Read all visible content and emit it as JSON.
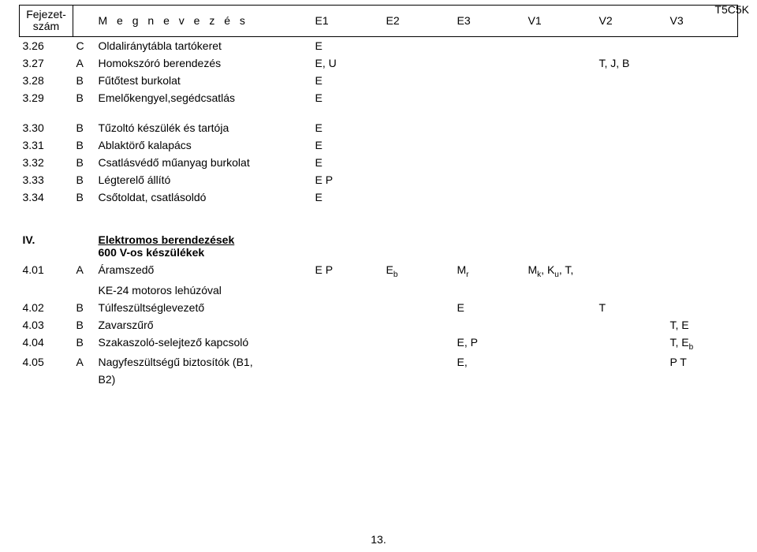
{
  "doc": {
    "code": "T5C5K",
    "page_number": "13."
  },
  "header": {
    "fejezet_line1": "Fejezet-",
    "fejezet_line2": "szám",
    "megnevezes": "M e g n e v e z é s",
    "cols": [
      "E1",
      "E2",
      "E3",
      "V1",
      "V2",
      "V3"
    ]
  },
  "rows": [
    {
      "num": "3.26",
      "cat": "C",
      "name": "Oldaliránytábla tartókeret",
      "c1": "E",
      "c2": "",
      "c3": "",
      "c4": "",
      "c5": "",
      "c6": ""
    },
    {
      "num": "3.27",
      "cat": "A",
      "name": "Homokszóró berendezés",
      "c1": "E, U",
      "c2": "",
      "c3": "",
      "c4": "",
      "c5": "T, J, B",
      "c6": ""
    },
    {
      "num": "3.28",
      "cat": "B",
      "name": "Fűtőtest burkolat",
      "c1": "E",
      "c2": "",
      "c3": "",
      "c4": "",
      "c5": "",
      "c6": ""
    },
    {
      "num": "3.29",
      "cat": "B",
      "name": "Emelőkengyel,segédcsatlás",
      "c1": "E",
      "c2": "",
      "c3": "",
      "c4": "",
      "c5": "",
      "c6": ""
    }
  ],
  "rows2": [
    {
      "num": "3.30",
      "cat": "B",
      "name": "Tűzoltó készülék és tartója",
      "c1": "E",
      "c2": "",
      "c3": "",
      "c4": "",
      "c5": "",
      "c6": ""
    },
    {
      "num": "3.31",
      "cat": "B",
      "name": "Ablaktörő kalapács",
      "c1": "E",
      "c2": "",
      "c3": "",
      "c4": "",
      "c5": "",
      "c6": ""
    },
    {
      "num": "3.32",
      "cat": "B",
      "name": "Csatlásvédő műanyag burkolat",
      "c1": "E",
      "c2": "",
      "c3": "",
      "c4": "",
      "c5": "",
      "c6": ""
    },
    {
      "num": "3.33",
      "cat": "B",
      "name": "Légterelő állító",
      "c1": "E P",
      "c2": "",
      "c3": "",
      "c4": "",
      "c5": "",
      "c6": ""
    },
    {
      "num": "3.34",
      "cat": "B",
      "name": "Csőtoldat, csatlásoldó",
      "c1": "E",
      "c2": "",
      "c3": "",
      "c4": "",
      "c5": "",
      "c6": ""
    }
  ],
  "section4": {
    "num": "IV.",
    "title": "Elektromos berendezések",
    "subtitle": "600 V-os készülékek"
  },
  "rows4": [
    {
      "num": "4.01",
      "cat": "A",
      "name_html": "Áramszedő",
      "c1": "E P",
      "c2_html": "E<sub>b</sub>",
      "c3_html": "M<sub>r</sub>",
      "c4_html": "M<sub>k</sub>, K<sub>u</sub>, T,",
      "c5": "",
      "c6": ""
    },
    {
      "num": "",
      "cat": "",
      "name_html": "KE-24 motoros lehúzóval",
      "c1": "",
      "c2_html": "",
      "c3_html": "",
      "c4_html": "",
      "c5": "",
      "c6": ""
    },
    {
      "num": "4.02",
      "cat": "B",
      "name_html": "Túlfeszültséglevezető",
      "c1": "",
      "c2_html": "",
      "c3_html": "E",
      "c4_html": "",
      "c5": "T",
      "c6": ""
    },
    {
      "num": "4.03",
      "cat": "B",
      "name_html": "Zavarszűrő",
      "c1": "",
      "c2_html": "",
      "c3_html": "",
      "c4_html": "",
      "c5": "",
      "c6": "T, E"
    },
    {
      "num": "4.04",
      "cat": "B",
      "name_html": "Szakaszoló-selejtező kapcsoló",
      "c1": "",
      "c2_html": "",
      "c3_html": "E, P",
      "c4_html": "",
      "c5": "",
      "c6_html": "T, E<sub>b</sub>"
    },
    {
      "num": "4.05",
      "cat": "A",
      "name_html": "Nagyfeszültségű biztosítók (B1,",
      "c1": "",
      "c2_html": "",
      "c3_html": "E,",
      "c4_html": "",
      "c5": "",
      "c6": "P T"
    },
    {
      "num": "",
      "cat": "",
      "name_html": "B2)",
      "c1": "",
      "c2_html": "",
      "c3_html": "",
      "c4_html": "",
      "c5": "",
      "c6": ""
    }
  ]
}
